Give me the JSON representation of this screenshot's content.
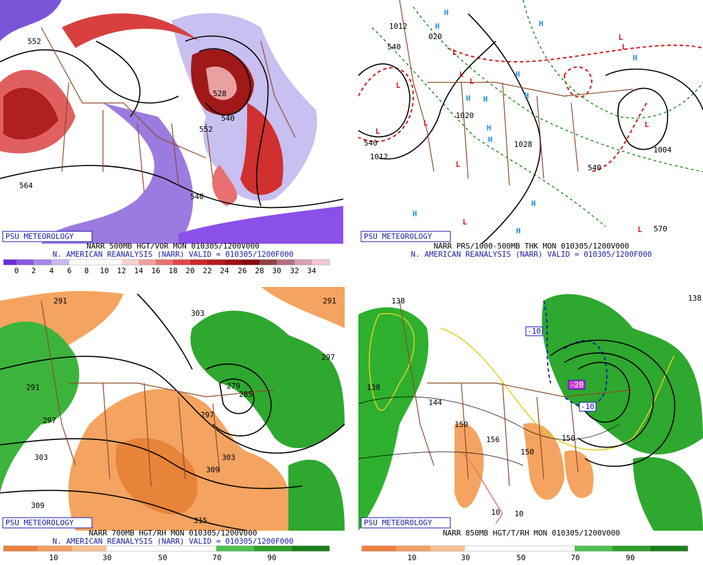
{
  "panels": [
    {
      "badge": "PSU METEOROLOGY",
      "caption_line1": "NARR 500MB HGT/VOR MON 010305/1200V000",
      "caption_line2": "N. AMERICAN REANALYSIS (NARR) VALID = 010305/1200F000",
      "contour_labels": [
        "552",
        "564",
        "540",
        "552",
        "540",
        "528"
      ],
      "colorbar_labels": [
        0,
        2,
        4,
        6,
        8,
        10,
        12,
        14,
        16,
        18,
        20,
        22,
        24,
        26,
        28,
        30,
        32,
        34
      ]
    },
    {
      "badge": "PSU METEOROLOGY",
      "caption_line1": "NARR PRS/1000-500MB THK MON 010305/1200V000",
      "caption_line2": "N. AMERICAN REANALYSIS (NARR) VALID = 010305/1200F000",
      "contour_labels": [
        "1012",
        "020",
        "1012",
        "1004",
        "1020",
        "1028",
        "540",
        "540",
        "540",
        "570"
      ],
      "markers": [
        "H",
        "H",
        "H",
        "H",
        "H",
        "H",
        "H",
        "H",
        "H",
        "H",
        "H",
        "H",
        "H",
        "L",
        "L",
        "L",
        "L",
        "L",
        "L",
        "L",
        "L",
        "L",
        "L",
        "L",
        "L"
      ]
    },
    {
      "badge": "PSU METEOROLOGY",
      "caption_line1": "NARR 700MB HGT/RH MON 010305/1200V000",
      "caption_line2": "N. AMERICAN REANALYSIS (NARR) VALID = 010305/1200F000",
      "contour_labels": [
        "291",
        "291",
        "303",
        "291",
        "297",
        "279",
        "285",
        "297",
        "297",
        "303",
        "303",
        "309",
        "309",
        "315"
      ],
      "colorbar_labels": [
        10,
        30,
        50,
        70,
        90
      ]
    },
    {
      "badge": "PSU METEOROLOGY",
      "caption_line1": "NARR 850MB HGT/T/RH MON 010305/1200V000",
      "contour_labels": [
        "138",
        "138",
        "-10",
        "-20",
        "-10",
        "138",
        "144",
        "150",
        "156",
        "150",
        "150",
        "10",
        "10"
      ],
      "colorbar_labels": [
        10,
        30,
        50,
        70,
        90
      ]
    }
  ]
}
